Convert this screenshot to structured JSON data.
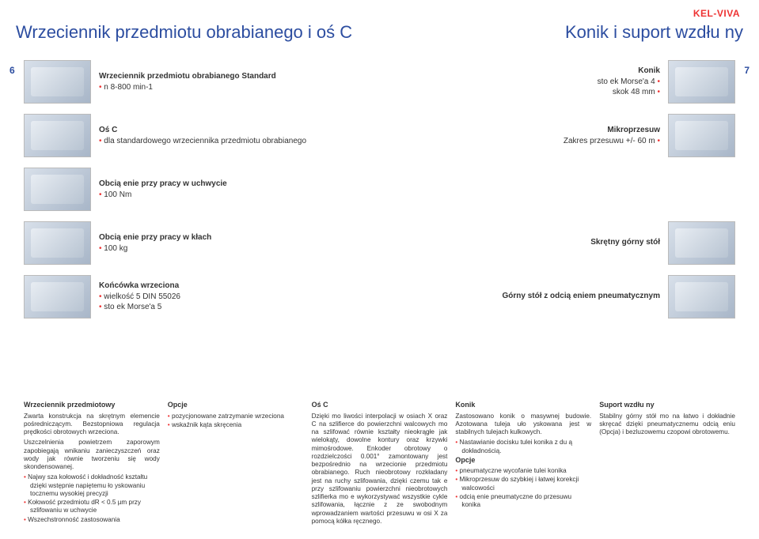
{
  "brand": "KEL-VIVA",
  "title_left": "Wrzeciennik przedmiotu obrabianego i oś C",
  "title_right": "Konik i suport wzdłu ny",
  "page_left": "6",
  "page_right": "7",
  "specs": [
    {
      "l": {
        "hdr": "Wrzeciennik przedmiotu obrabianego Standard",
        "pts": [
          "n 8-800 min-1"
        ]
      },
      "r": {
        "hdr": "Konik",
        "pts": [
          "sto ek Morse'a 4",
          "skok 48 mm"
        ]
      }
    },
    {
      "l": {
        "hdr": "Oś C",
        "pts": [
          "dla standardowego wrzeciennika przedmiotu obrabianego"
        ]
      },
      "r": {
        "hdr": "Mikroprzesuw",
        "pts": [
          "Zakres przesuwu +/- 60  m"
        ]
      }
    },
    {
      "l": {
        "hdr": "Obcią enie przy pracy w uchwycie",
        "pts": [
          "100 Nm"
        ]
      },
      "r": null
    },
    {
      "l": {
        "hdr": "Obcią enie przy pracy w kłach",
        "pts": [
          "100 kg"
        ]
      },
      "r": {
        "hdr": "Skrętny górny stół",
        "pts": []
      }
    },
    {
      "l": {
        "hdr": "Końcówka wrzeciona",
        "pts": [
          "wielkość 5 DIN 55026",
          "sto ek Morse'a 5"
        ]
      },
      "r": {
        "hdr": "Górny stół z odcią eniem pneumatycznym",
        "pts": []
      }
    }
  ],
  "cols": [
    {
      "title": "Wrzeciennik przedmiotowy",
      "paras": [
        "Zwarta konstrukcja na skrętnym elemencie pośredniczącym. Bezstopniowa regulacja prędkości obrotowych wrzeciona.",
        "Uszczelnienia powietrzem zaporowym zapobiegają wnikaniu zanieczyszczeń oraz wody jak równie  tworzeniu się wody skondensowanej."
      ],
      "bullets": [
        "Najwy sza kołowość i dokładność kształtu dzięki wstępnie napiętemu ło yskowaniu tocznemu wysokiej precyzji",
        "Kołowość przedmiotu dR < 0.5 µm przy szlifowaniu w uchwycie",
        "Wszechstronność zastosowania"
      ]
    },
    {
      "title": "Opcje",
      "paras": [],
      "bullets": [
        "pozycjonowane zatrzymanie wrzeciona",
        "wskaźnik kąta skręcenia"
      ]
    },
    {
      "title": "Oś C",
      "paras": [
        "Dzięki mo liwości interpolacji w osiach X oraz C na szlifierce do powierzchni walcowych mo na szlifować równie  kształty nieokrągłe jak wielokąty, dowolne kontury oraz krzywki mimośrodowe. Enkoder obrotowy o rozdzielczości 0.001° zamontowany jest bezpośrednio na wrzecionie przedmiotu obrabianego. Ruch nieobrotowy rozkładany jest na ruchy szlifowania, dzięki czemu tak e przy szlifowaniu powierzchni nieobrotowych szlifierka mo e wykorzystywać wszystkie cykle szlifowania, łącznie z ze swobodnym wprowadzaniem wartości przesuwu w osi X za pomocą kółka ręcznego."
      ],
      "bullets": []
    },
    {
      "title": "Konik",
      "paras": [
        "Zastosowano konik o masywnej budowie. Azotowana tuleja uło yskowana jest  w stabilnych tulejach kulkowych."
      ],
      "bullets": [
        "Nastawianie docisku tulei konika z du  ą dokładnością."
      ],
      "sub": "Opcje",
      "bullets2": [
        "pneumatyczne wycofanie tulei konika",
        "Mikroprzesuw do szybkiej i łatwej korekcji walcowości",
        "odcią enie pneumatyczne do przesuwu konika"
      ]
    },
    {
      "title": "Suport wzdłu ny",
      "paras": [
        "Stabilny górny stół mo na łatwo i dokładnie skręcać dzięki pneumatycznemu odcią eniu (Opcja) i bezluzowemu czopowi obrotowemu."
      ],
      "bullets": []
    }
  ]
}
